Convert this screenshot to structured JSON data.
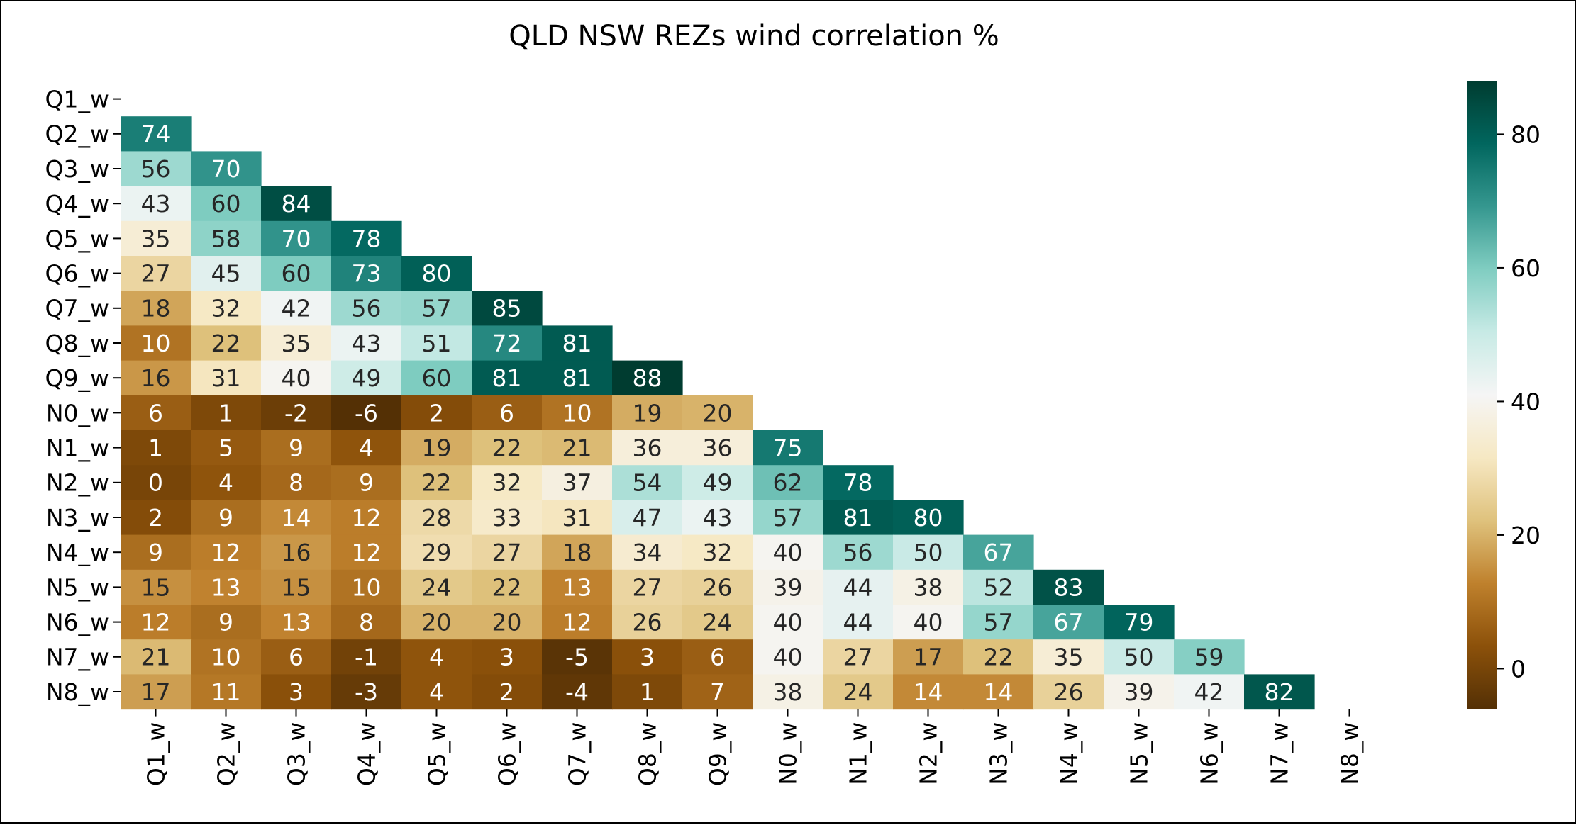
{
  "chart_data": {
    "type": "heatmap",
    "title": "QLD NSW REZs wind correlation %",
    "row_labels": [
      "Q1_w",
      "Q2_w",
      "Q3_w",
      "Q4_w",
      "Q5_w",
      "Q6_w",
      "Q7_w",
      "Q8_w",
      "Q9_w",
      "N0_w",
      "N1_w",
      "N2_w",
      "N3_w",
      "N4_w",
      "N5_w",
      "N6_w",
      "N7_w",
      "N8_w"
    ],
    "col_labels": [
      "Q1_w",
      "Q2_w",
      "Q3_w",
      "Q4_w",
      "Q5_w",
      "Q6_w",
      "Q7_w",
      "Q8_w",
      "Q9_w",
      "N0_w",
      "N1_w",
      "N2_w",
      "N3_w",
      "N4_w",
      "N5_w",
      "N6_w",
      "N7_w",
      "N8_w"
    ],
    "values": [
      [],
      [
        74
      ],
      [
        56,
        70
      ],
      [
        43,
        60,
        84
      ],
      [
        35,
        58,
        70,
        78
      ],
      [
        27,
        45,
        60,
        73,
        80
      ],
      [
        18,
        32,
        42,
        56,
        57,
        85
      ],
      [
        10,
        22,
        35,
        43,
        51,
        72,
        81
      ],
      [
        16,
        31,
        40,
        49,
        60,
        81,
        81,
        88
      ],
      [
        6,
        1,
        -2,
        -6,
        2,
        6,
        10,
        19,
        20
      ],
      [
        1,
        5,
        9,
        4,
        19,
        22,
        21,
        36,
        36,
        75
      ],
      [
        0,
        4,
        8,
        9,
        22,
        32,
        37,
        54,
        49,
        62,
        78
      ],
      [
        2,
        9,
        14,
        12,
        28,
        33,
        31,
        47,
        43,
        57,
        81,
        80
      ],
      [
        9,
        12,
        16,
        12,
        29,
        27,
        18,
        34,
        32,
        40,
        56,
        50,
        67
      ],
      [
        15,
        13,
        15,
        10,
        24,
        22,
        13,
        27,
        26,
        39,
        44,
        38,
        52,
        83
      ],
      [
        12,
        9,
        13,
        8,
        20,
        20,
        12,
        26,
        24,
        40,
        44,
        40,
        57,
        67,
        79
      ],
      [
        21,
        10,
        6,
        -1,
        4,
        3,
        -5,
        3,
        6,
        40,
        27,
        17,
        22,
        35,
        50,
        59
      ],
      [
        17,
        11,
        3,
        -3,
        4,
        2,
        -4,
        1,
        7,
        38,
        24,
        14,
        14,
        26,
        39,
        42,
        82
      ]
    ],
    "colormap": "BrBG",
    "vmin": -6,
    "vmax": 88,
    "colorbar": {
      "ticks": [
        0,
        20,
        40,
        60,
        80
      ],
      "tick_labels": [
        "0",
        "20",
        "40",
        "60",
        "80"
      ]
    },
    "xlabel": "",
    "ylabel": "",
    "grid": false,
    "annotated": true
  }
}
